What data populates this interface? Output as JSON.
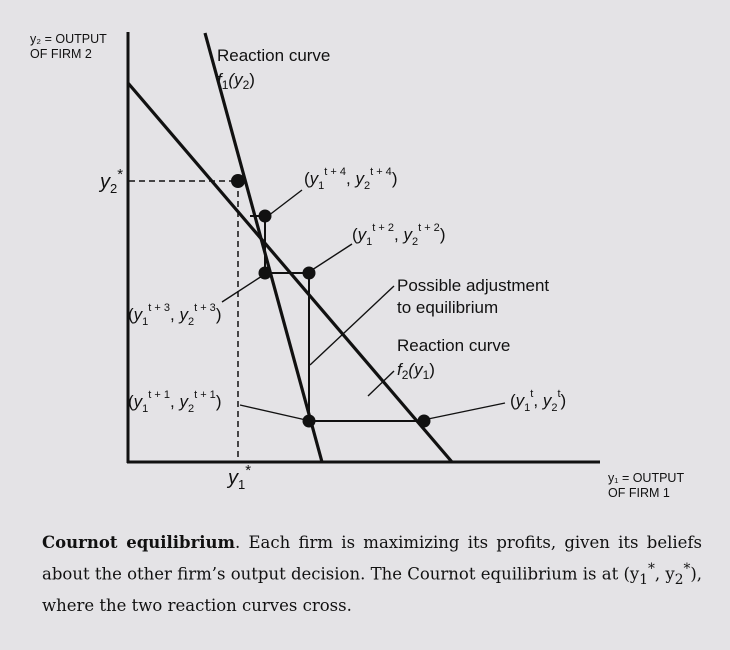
{
  "axes": {
    "y_label_line1": "y₂ = OUTPUT",
    "y_label_line2": "OF FIRM 2",
    "x_label_line1": "y₁ = OUTPUT",
    "x_label_line2": "OF FIRM 1"
  },
  "equilibrium": {
    "y_tick_base": "y",
    "y_tick_sub": "2",
    "y_tick_sup": "*",
    "x_tick_base": "y",
    "x_tick_sub": "1",
    "x_tick_sup": "*"
  },
  "curves": {
    "f1_title": "Reaction curve",
    "f1_func": "f",
    "f1_sub": "1",
    "f1_arg": "(y",
    "f1_arg_sub": "2",
    "f1_close": ")",
    "f2_title": "Reaction curve",
    "f2_func": "f",
    "f2_sub": "2",
    "f2_arg": "(y",
    "f2_arg_sub": "1",
    "f2_close": ")"
  },
  "adjustment": {
    "line1": "Possible adjustment",
    "line2": "to equilibrium"
  },
  "points": {
    "t4": {
      "sup": "t + 4"
    },
    "t2": {
      "sup": "t + 2"
    },
    "t3": {
      "sup": "t + 3"
    },
    "t1": {
      "sup": "t + 1"
    },
    "t0": {
      "sup": "t"
    }
  },
  "caption": {
    "title": "Cournot equilibrium",
    "text": ". Each firm is maximizing its profits, given its beliefs about the other firm’s output decision. The Cournot equilibrium is at (y",
    "eq_sub1": "1",
    "eq_sup1": "*",
    "eq_mid": ", y",
    "eq_sub2": "2",
    "eq_sup2": "*",
    "text_end": "), where the two reaction curves cross."
  }
}
